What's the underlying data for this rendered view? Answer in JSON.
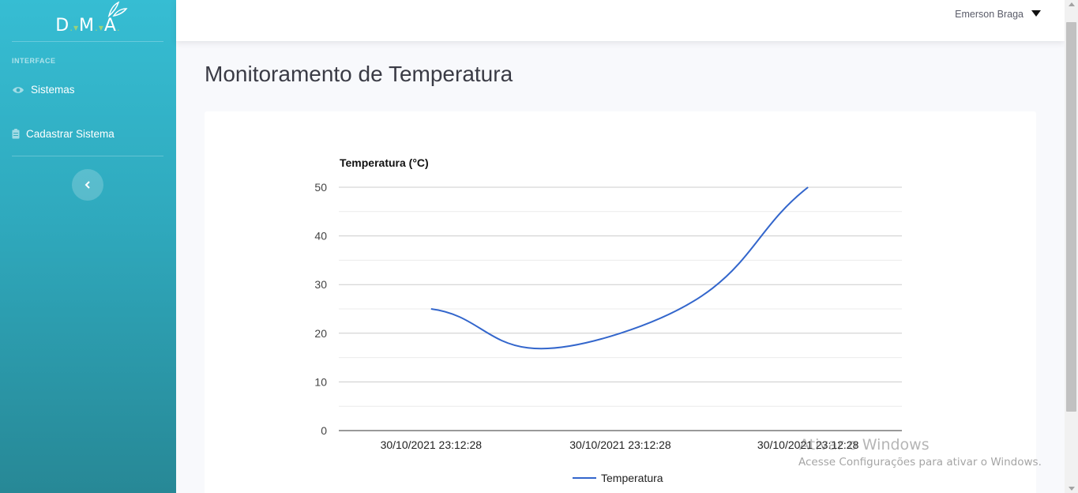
{
  "sidebar": {
    "brand": {
      "letters": [
        "D",
        "M",
        "A"
      ]
    },
    "heading": "INTERFACE",
    "items": [
      {
        "label": "Sistemas",
        "icon": "eye-icon"
      },
      {
        "label": "Cadastrar Sistema",
        "icon": "clipboard-icon"
      }
    ],
    "toggle_icon": "chevron-left-icon"
  },
  "topbar": {
    "user_name": "Emerson Braga"
  },
  "main": {
    "title": "Monitoramento de Temperatura"
  },
  "chart_data": {
    "type": "line",
    "title": "",
    "ylabel": "Temperatura (°C)",
    "xlabel": "",
    "categories": [
      "30/10/2021 23:12:28",
      "30/10/2021 23:12:28",
      "30/10/2021 23:12:28"
    ],
    "series": [
      {
        "name": "Temperatura",
        "values": [
          25,
          20,
          50
        ],
        "color": "#3366cc"
      }
    ],
    "ylim": [
      0,
      50
    ],
    "yticks": [
      0,
      10,
      20,
      30,
      40,
      50
    ],
    "grid": true,
    "legend": "bottom"
  },
  "watermark": {
    "title": "Ativar o Windows",
    "subtitle": "Acesse Configurações para ativar o Windows."
  },
  "colors": {
    "sidebar_top": "#36bdd3",
    "sidebar_bottom": "#278896",
    "series": "#3366cc"
  }
}
